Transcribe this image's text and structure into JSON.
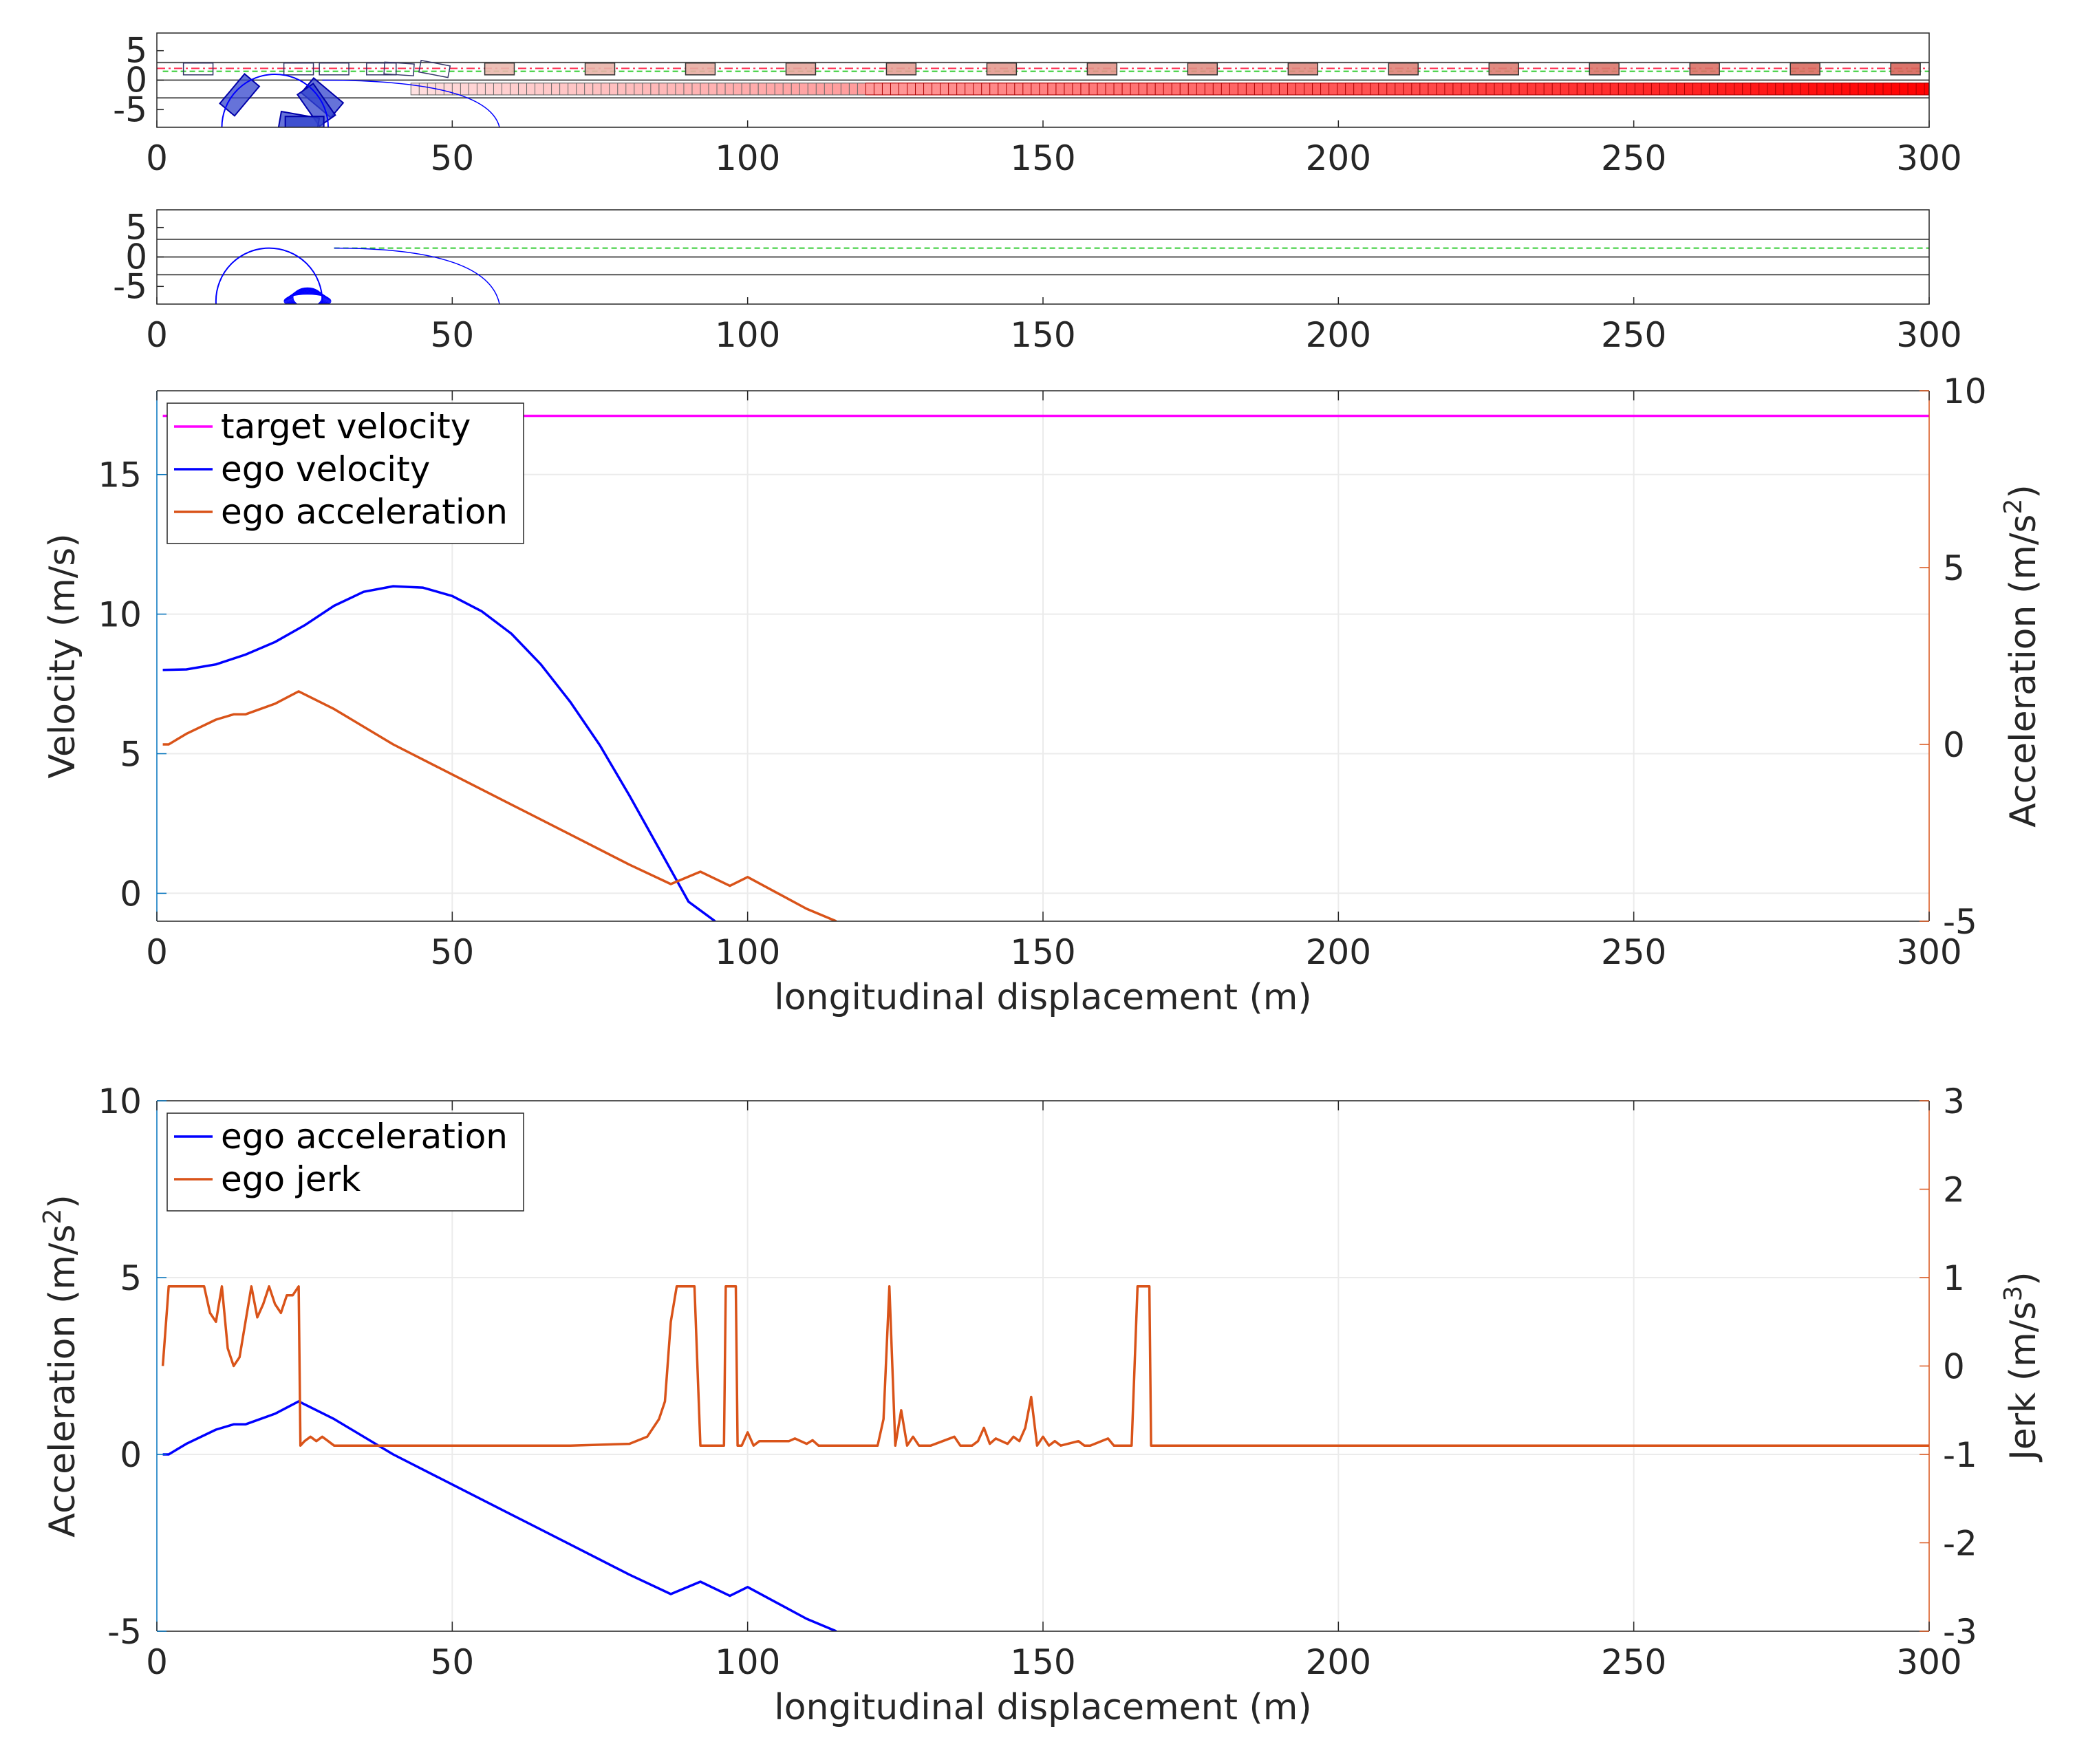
{
  "colors": {
    "left_axis": "#0072bd",
    "right_axis": "#d95319",
    "target_velocity": "#ff00ff",
    "ego_velocity": "#0000ff",
    "ego_acceleration_top": "#d95319",
    "ego_acceleration_bottom": "#0000ff",
    "ego_jerk": "#d95319",
    "lane_line": "#555555",
    "green_dash": "#33cc33",
    "red_dash": "#ff3355"
  },
  "chart_data": [
    {
      "id": "scene_top",
      "type": "scatter",
      "title": "",
      "xlabel": "",
      "ylabel": "",
      "xlim": [
        0,
        300
      ],
      "ylim": [
        -8,
        8
      ],
      "xticks": [
        "0",
        "50",
        "100",
        "150",
        "200",
        "250",
        "300"
      ],
      "yticks": [
        "5",
        "0",
        "-5"
      ],
      "grid": false,
      "lane_lines_y": [
        3,
        0,
        -3
      ],
      "upper_lane_vehicles_x": [
        7,
        24,
        30,
        38,
        41,
        47,
        58,
        75,
        92,
        109,
        126,
        143,
        160,
        177,
        194,
        211,
        228,
        245,
        262,
        279,
        296
      ],
      "lower_lane_vehicle_range_x": [
        43,
        300
      ],
      "ego_heading_circle": {
        "cx": 20,
        "cy": -8,
        "r": 9
      },
      "ego_trajectory_arc": {
        "start": [
          28,
          0
        ],
        "end": [
          58,
          -8
        ]
      }
    },
    {
      "id": "scene_bottom",
      "type": "scatter",
      "title": "",
      "xlabel": "",
      "ylabel": "",
      "xlim": [
        0,
        300
      ],
      "ylim": [
        -8,
        8
      ],
      "xticks": [
        "0",
        "50",
        "100",
        "150",
        "200",
        "250",
        "300"
      ],
      "yticks": [
        "5",
        "0",
        "-5"
      ],
      "grid": false,
      "lane_lines_y": [
        3,
        0,
        -3
      ],
      "ego_heading_circle": {
        "cx": 19,
        "cy": -7.5,
        "r": 9
      },
      "ego_trajectory_arc": {
        "start": [
          30,
          1.5
        ],
        "end": [
          58,
          -8
        ]
      }
    },
    {
      "id": "velocity_chart",
      "type": "line",
      "title": "",
      "xlabel": "longitudinal displacement (m)",
      "ylabel": "Velocity (m/s)",
      "y2label": "Acceleration (m/s2)",
      "xlim": [
        0,
        300
      ],
      "ylim": [
        -1,
        18
      ],
      "y2lim": [
        -5,
        10
      ],
      "xticks": [
        "0",
        "50",
        "100",
        "150",
        "200",
        "250",
        "300"
      ],
      "yticks": [
        "0",
        "5",
        "10",
        "15"
      ],
      "y2ticks": [
        "-5",
        "0",
        "5",
        "10"
      ],
      "grid": true,
      "legend": "top-left",
      "series": [
        {
          "name": "target velocity",
          "axis": "left",
          "x": [
            1,
            300
          ],
          "y": [
            17.1,
            17.1
          ]
        },
        {
          "name": "ego velocity",
          "axis": "left",
          "x": [
            1,
            5,
            10,
            15,
            20,
            25,
            30,
            35,
            40,
            45,
            50,
            55,
            60,
            65,
            70,
            75,
            80,
            85,
            90,
            94.5
          ],
          "y": [
            8.0,
            8.02,
            8.2,
            8.55,
            9.0,
            9.6,
            10.3,
            10.8,
            11.0,
            10.95,
            10.65,
            10.1,
            9.3,
            8.2,
            6.85,
            5.3,
            3.5,
            1.6,
            -0.3,
            -1.0
          ]
        },
        {
          "name": "ego acceleration",
          "axis": "right",
          "x": [
            1,
            2,
            5,
            10,
            13,
            15,
            20,
            24,
            30,
            40,
            50,
            60,
            70,
            80,
            87,
            92,
            97,
            100,
            105,
            110,
            115
          ],
          "y": [
            0.0,
            0.0,
            0.3,
            0.7,
            0.85,
            0.85,
            1.15,
            1.5,
            1.0,
            0.0,
            -0.85,
            -1.7,
            -2.55,
            -3.4,
            -3.95,
            -3.6,
            -4.0,
            -3.75,
            -4.2,
            -4.65,
            -5.0
          ]
        }
      ]
    },
    {
      "id": "acceleration_jerk_chart",
      "type": "line",
      "title": "",
      "xlabel": "longitudinal displacement (m)",
      "ylabel": "Acceleration (m/s2)",
      "y2label": "Jerk (m/s3)",
      "xlim": [
        0,
        300
      ],
      "ylim": [
        -5,
        10
      ],
      "y2lim": [
        -3,
        3
      ],
      "xticks": [
        "0",
        "50",
        "100",
        "150",
        "200",
        "250",
        "300"
      ],
      "yticks": [
        "-5",
        "0",
        "5",
        "10"
      ],
      "y2ticks": [
        "-3",
        "-2",
        "-1",
        "0",
        "1",
        "2",
        "3"
      ],
      "grid": true,
      "legend": "top-left",
      "series": [
        {
          "name": "ego acceleration",
          "axis": "left",
          "x": [
            1,
            2,
            5,
            10,
            13,
            15,
            20,
            24,
            30,
            40,
            50,
            60,
            70,
            80,
            87,
            92,
            97,
            100,
            105,
            110,
            115
          ],
          "y": [
            0.0,
            0.0,
            0.3,
            0.7,
            0.85,
            0.85,
            1.15,
            1.5,
            1.0,
            0.0,
            -0.85,
            -1.7,
            -2.55,
            -3.4,
            -3.95,
            -3.6,
            -4.0,
            -3.75,
            -4.2,
            -4.65,
            -5.0
          ]
        },
        {
          "name": "ego jerk",
          "axis": "right",
          "x": [
            1,
            2,
            3,
            5,
            8,
            9,
            10,
            11,
            12,
            13,
            14,
            15,
            16,
            17,
            18,
            19,
            20,
            21,
            22,
            23,
            24,
            24.3,
            25,
            26,
            27,
            28,
            29,
            30,
            40,
            50,
            60,
            70,
            80,
            83,
            85,
            86,
            87,
            88,
            89,
            91,
            92,
            93,
            94,
            96,
            96.3,
            98,
            98.3,
            99,
            100,
            101,
            102,
            105,
            107,
            108,
            110,
            111,
            112,
            122,
            123,
            124,
            125,
            126,
            127,
            128,
            129,
            131,
            135,
            136,
            138,
            139,
            140,
            141,
            142,
            144,
            145,
            146,
            147,
            148,
            149,
            150,
            151,
            152,
            153,
            156,
            157,
            158,
            161,
            162,
            163,
            164,
            165,
            166,
            166.3,
            167,
            168,
            168.3,
            200,
            250,
            300
          ],
          "y": [
            0.0,
            0.9,
            0.9,
            0.9,
            0.9,
            0.6,
            0.5,
            0.9,
            0.2,
            0.0,
            0.1,
            0.5,
            0.9,
            0.55,
            0.7,
            0.9,
            0.7,
            0.6,
            0.8,
            0.8,
            0.9,
            -0.9,
            -0.85,
            -0.8,
            -0.85,
            -0.8,
            -0.85,
            -0.9,
            -0.9,
            -0.9,
            -0.9,
            -0.9,
            -0.88,
            -0.8,
            -0.6,
            -0.4,
            0.5,
            0.9,
            0.9,
            0.9,
            -0.9,
            -0.9,
            -0.9,
            -0.9,
            0.9,
            0.9,
            -0.9,
            -0.9,
            -0.75,
            -0.9,
            -0.85,
            -0.85,
            -0.85,
            -0.82,
            -0.88,
            -0.84,
            -0.9,
            -0.9,
            -0.6,
            0.9,
            -0.9,
            -0.5,
            -0.9,
            -0.8,
            -0.9,
            -0.9,
            -0.8,
            -0.9,
            -0.9,
            -0.85,
            -0.7,
            -0.88,
            -0.82,
            -0.88,
            -0.8,
            -0.85,
            -0.7,
            -0.35,
            -0.9,
            -0.8,
            -0.9,
            -0.85,
            -0.9,
            -0.85,
            -0.9,
            -0.9,
            -0.82,
            -0.9,
            -0.9,
            -0.9,
            -0.9,
            0.9,
            0.9,
            0.9,
            0.9,
            -0.9,
            -0.9,
            -0.9,
            -0.9
          ]
        }
      ]
    }
  ]
}
